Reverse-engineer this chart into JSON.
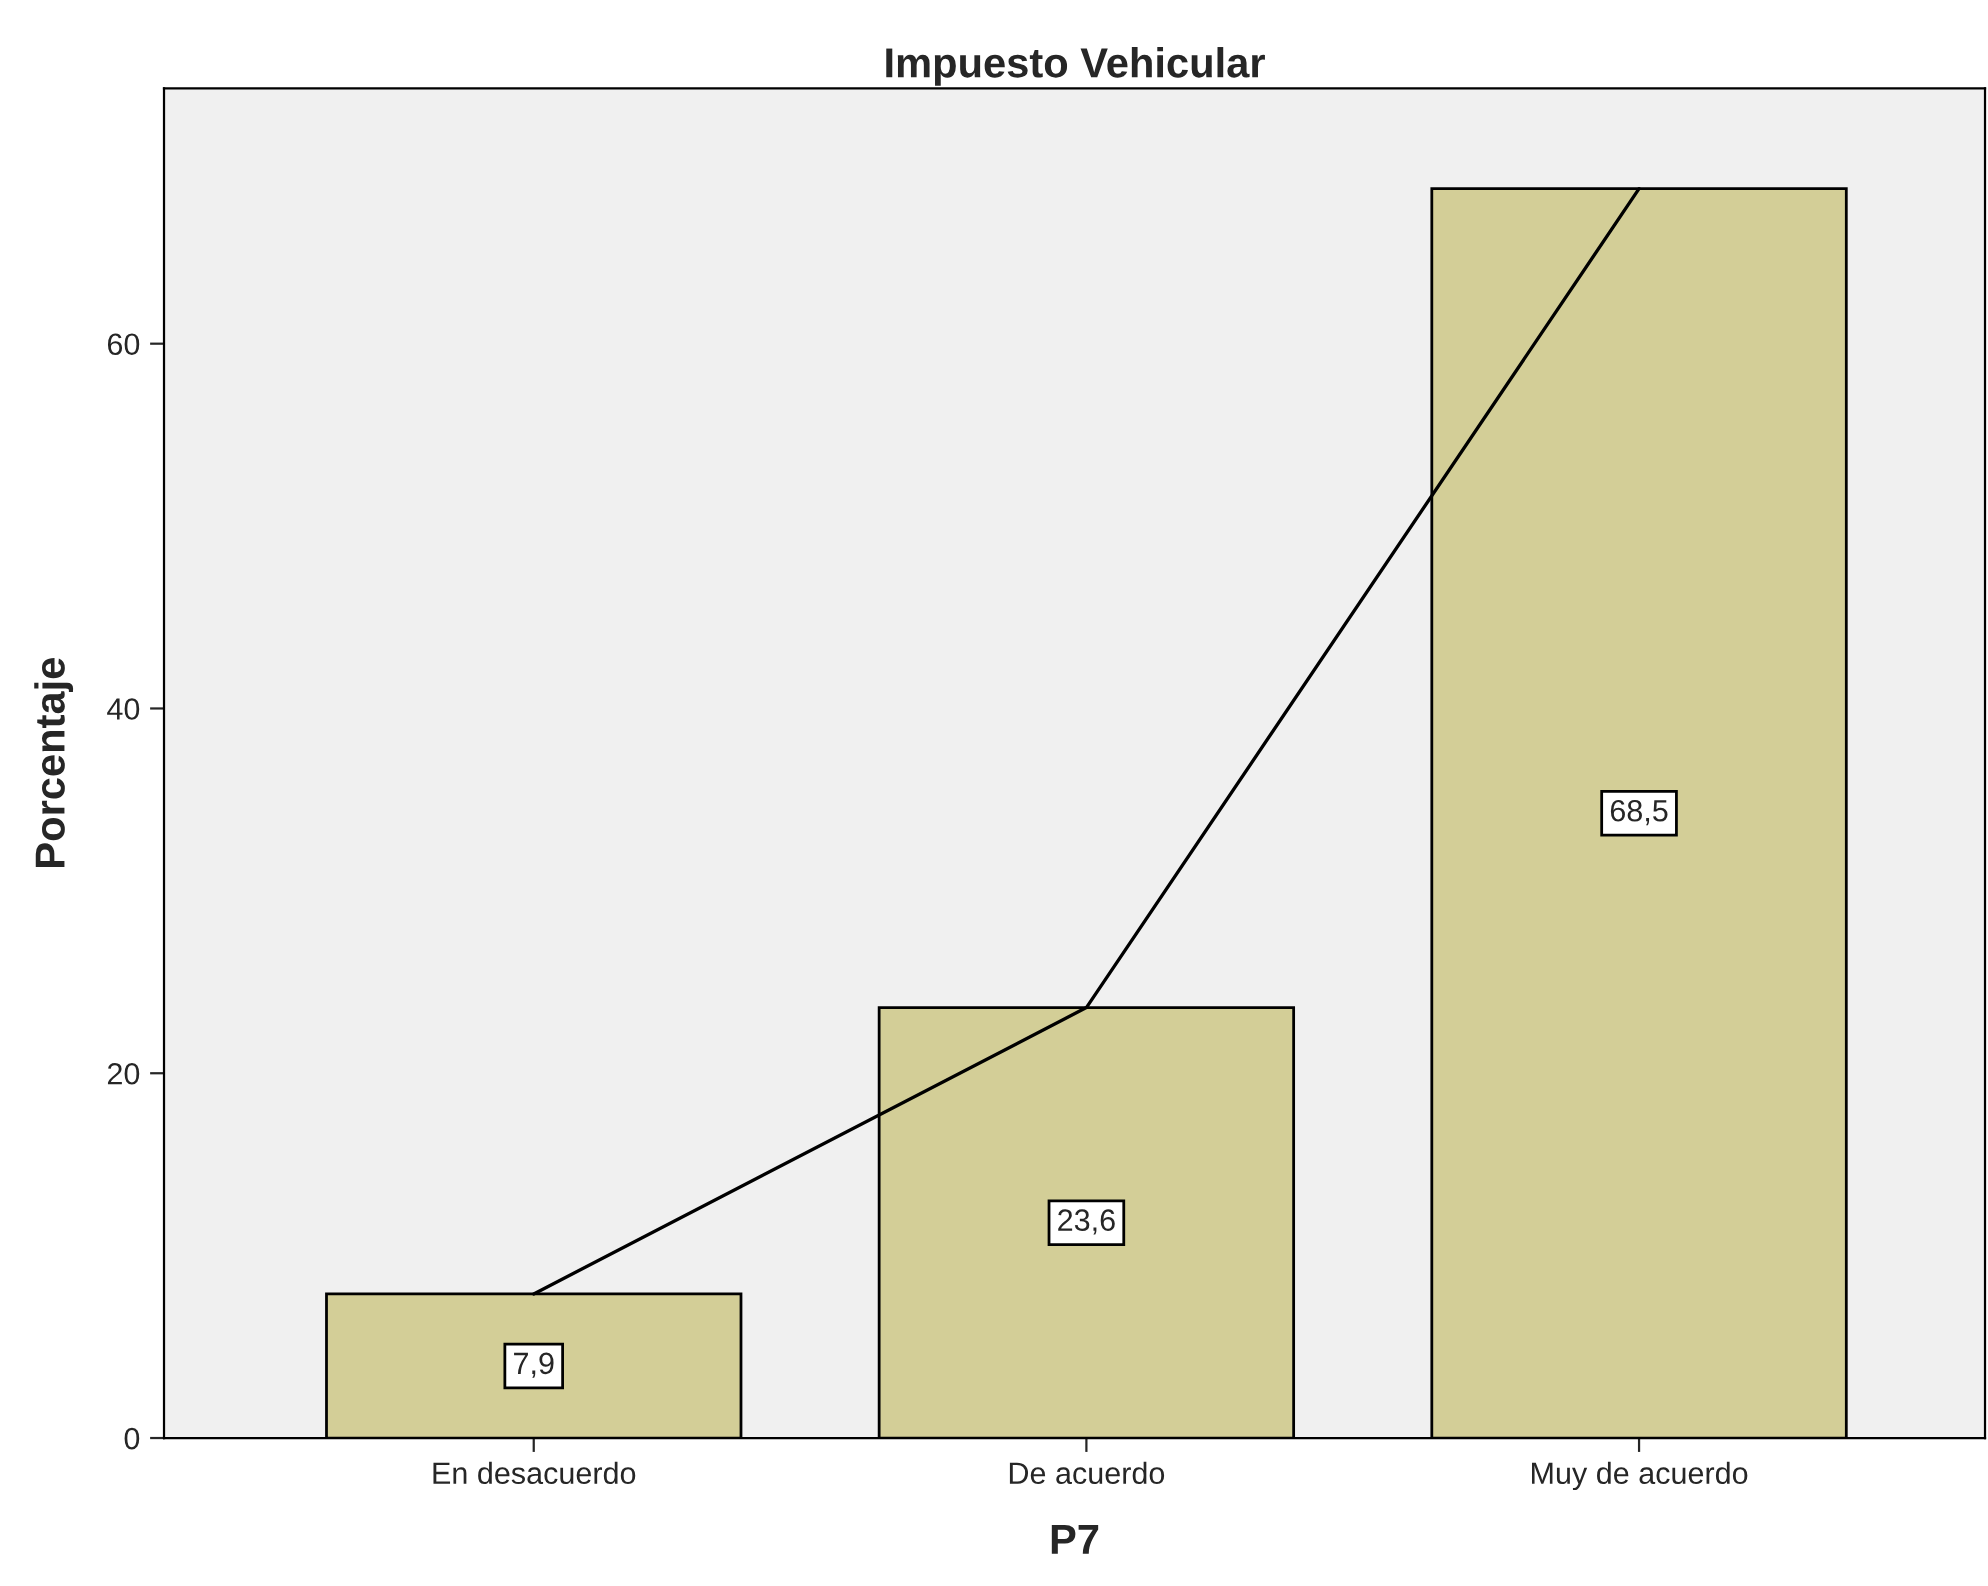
{
  "chart_data": {
    "type": "bar",
    "title": "Impuesto Vehicular",
    "xlabel": "P7",
    "ylabel": "Porcentaje",
    "categories": [
      "En desacuerdo",
      "De acuerdo",
      "Muy de acuerdo"
    ],
    "series": [
      {
        "color": "#d3ce97",
        "values": [
          7.9,
          23.6,
          68.5
        ],
        "value_labels": [
          "7,9",
          "23,6",
          "68,5"
        ]
      },
      {
        "type": "line",
        "color": "#000000",
        "values": [
          7.9,
          23.6,
          68.5
        ]
      }
    ],
    "ylim": [
      0,
      74
    ],
    "yticks": [
      0,
      20,
      40,
      60
    ],
    "grid": false
  }
}
